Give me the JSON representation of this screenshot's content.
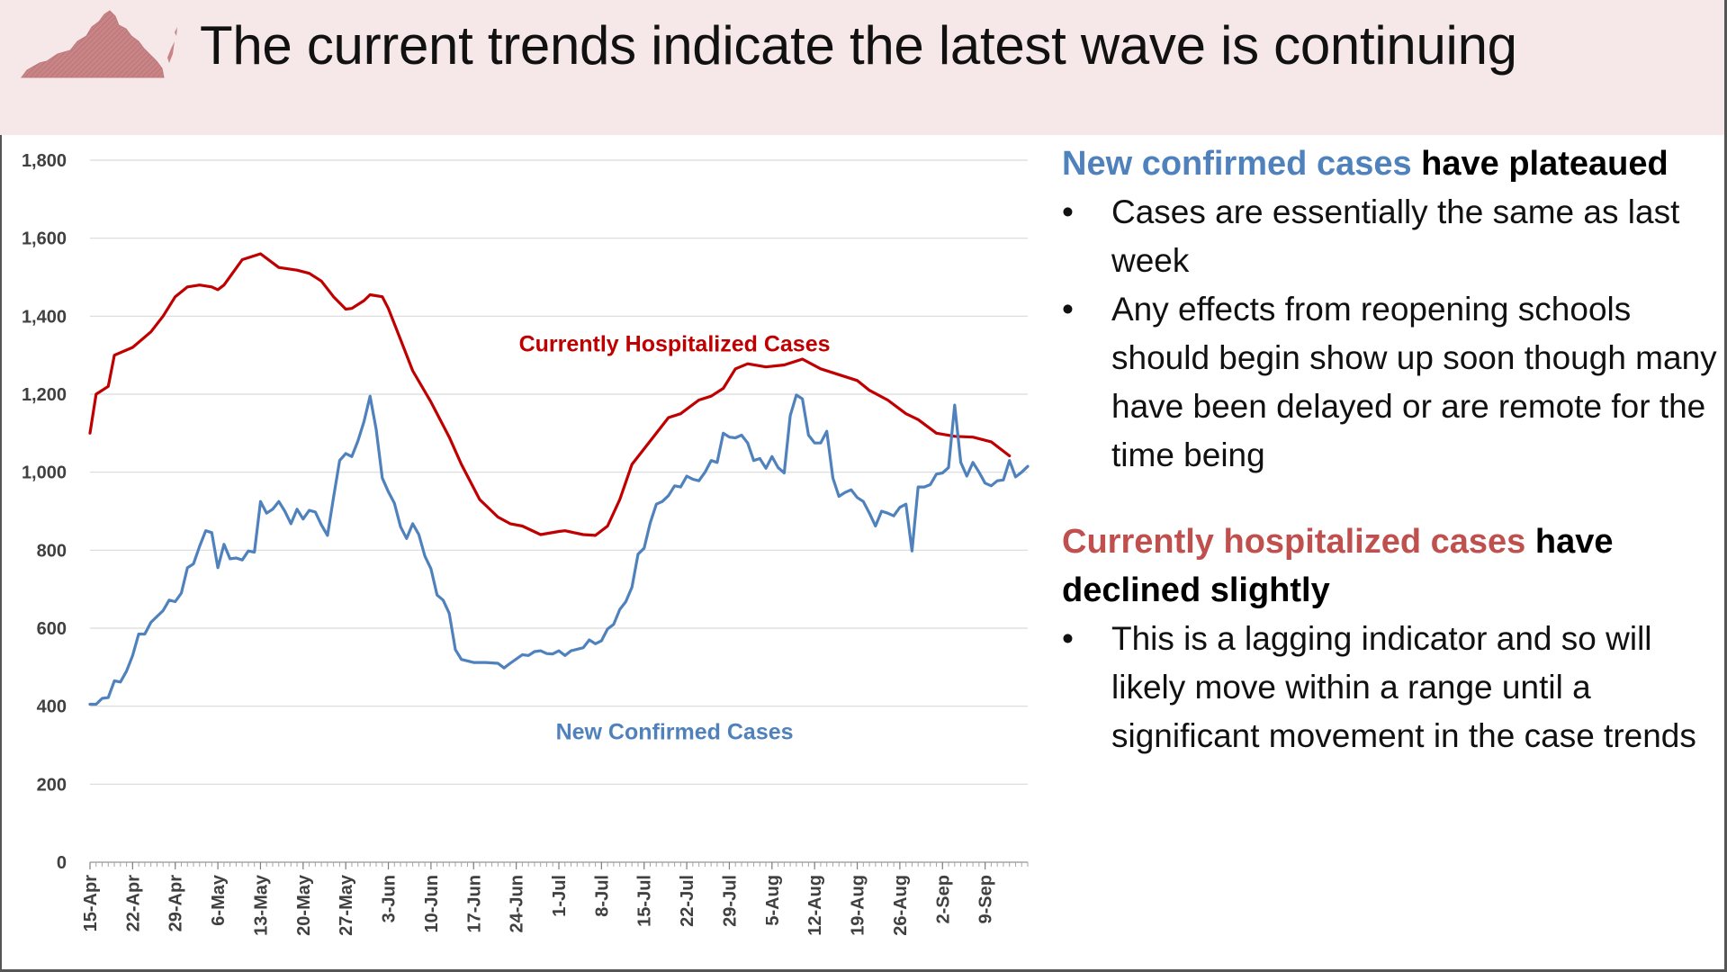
{
  "title": "The current trends indicate the latest wave is continuing",
  "icons": {
    "state": "virginia-map-icon"
  },
  "colors": {
    "header_bg": "#f6e8e9",
    "hospitalized": "#c00000",
    "confirmed": "#4f81bd",
    "confirmed_text": "#4f81bd",
    "hospitalized_text": "#c0504d"
  },
  "panel": {
    "section1": {
      "colored": "New confirmed cases",
      "rest": " have plateaued",
      "bullets": [
        "Cases are essentially the same as last week",
        "Any effects from reopening schools should begin show up soon though many have been delayed or are remote for the time being"
      ]
    },
    "section2": {
      "colored": "Currently hospitalized cases",
      "rest": " have declined slightly",
      "bullets": [
        "This is a lagging indicator and so will likely move within a range until a significant movement in the case trends"
      ]
    },
    "bullet_char": "•"
  },
  "chart_data": {
    "type": "line",
    "title": "",
    "xlabel": "",
    "ylabel": "",
    "ylim": [
      0,
      1800
    ],
    "yticks": [
      0,
      200,
      400,
      600,
      800,
      1000,
      1200,
      1400,
      1600,
      1800
    ],
    "yticklabels": [
      "0",
      "200",
      "400",
      "600",
      "800",
      "1,000",
      "1,200",
      "1,400",
      "1,600",
      "1,800"
    ],
    "x_start": "15-Apr",
    "x_end": "13-Sep",
    "xticklabels": [
      "15-Apr",
      "22-Apr",
      "29-Apr",
      "6-May",
      "13-May",
      "20-May",
      "27-May",
      "3-Jun",
      "10-Jun",
      "17-Jun",
      "24-Jun",
      "1-Jul",
      "8-Jul",
      "15-Jul",
      "22-Jul",
      "29-Jul",
      "5-Aug",
      "12-Aug",
      "19-Aug",
      "26-Aug",
      "2-Sep",
      "9-Sep"
    ],
    "grid": true,
    "series": [
      {
        "name": "Currently Hospitalized Cases",
        "color": "#c00000",
        "points": [
          [
            "15-Apr",
            1100
          ],
          [
            "16-Apr",
            1200
          ],
          [
            "18-Apr",
            1220
          ],
          [
            "19-Apr",
            1300
          ],
          [
            "22-Apr",
            1320
          ],
          [
            "25-Apr",
            1360
          ],
          [
            "27-Apr",
            1400
          ],
          [
            "29-Apr",
            1450
          ],
          [
            "1-May",
            1475
          ],
          [
            "3-May",
            1480
          ],
          [
            "5-May",
            1475
          ],
          [
            "6-May",
            1468
          ],
          [
            "7-May",
            1480
          ],
          [
            "10-May",
            1545
          ],
          [
            "13-May",
            1560
          ],
          [
            "16-May",
            1525
          ],
          [
            "19-May",
            1518
          ],
          [
            "21-May",
            1510
          ],
          [
            "23-May",
            1490
          ],
          [
            "25-May",
            1450
          ],
          [
            "27-May",
            1418
          ],
          [
            "28-May",
            1420
          ],
          [
            "30-May",
            1440
          ],
          [
            "31-May",
            1455
          ],
          [
            "2-Jun",
            1450
          ],
          [
            "3-Jun",
            1420
          ],
          [
            "5-Jun",
            1340
          ],
          [
            "7-Jun",
            1260
          ],
          [
            "10-Jun",
            1180
          ],
          [
            "13-Jun",
            1090
          ],
          [
            "15-Jun",
            1020
          ],
          [
            "18-Jun",
            930
          ],
          [
            "21-Jun",
            885
          ],
          [
            "23-Jun",
            868
          ],
          [
            "25-Jun",
            862
          ],
          [
            "28-Jun",
            840
          ],
          [
            "1-Jul",
            848
          ],
          [
            "2-Jul",
            850
          ],
          [
            "5-Jul",
            840
          ],
          [
            "7-Jul",
            838
          ],
          [
            "9-Jul",
            862
          ],
          [
            "11-Jul",
            930
          ],
          [
            "13-Jul",
            1020
          ],
          [
            "16-Jul",
            1080
          ],
          [
            "19-Jul",
            1140
          ],
          [
            "21-Jul",
            1150
          ],
          [
            "24-Jul",
            1185
          ],
          [
            "26-Jul",
            1195
          ],
          [
            "28-Jul",
            1215
          ],
          [
            "30-Jul",
            1265
          ],
          [
            "1-Aug",
            1278
          ],
          [
            "4-Aug",
            1270
          ],
          [
            "7-Aug",
            1275
          ],
          [
            "10-Aug",
            1290
          ],
          [
            "13-Aug",
            1265
          ],
          [
            "16-Aug",
            1250
          ],
          [
            "19-Aug",
            1235
          ],
          [
            "21-Aug",
            1210
          ],
          [
            "24-Aug",
            1185
          ],
          [
            "27-Aug",
            1150
          ],
          [
            "29-Aug",
            1135
          ],
          [
            "1-Sep",
            1100
          ],
          [
            "4-Sep",
            1092
          ],
          [
            "7-Sep",
            1090
          ],
          [
            "10-Sep",
            1078
          ],
          [
            "13-Sep",
            1042
          ]
        ]
      },
      {
        "name": "New Confirmed Cases",
        "color": "#4f81bd",
        "points": [
          [
            "15-Apr",
            405
          ],
          [
            "16-Apr",
            405
          ],
          [
            "17-Apr",
            420
          ],
          [
            "18-Apr",
            422
          ],
          [
            "19-Apr",
            465
          ],
          [
            "20-Apr",
            462
          ],
          [
            "21-Apr",
            490
          ],
          [
            "22-Apr",
            530
          ],
          [
            "23-Apr",
            585
          ],
          [
            "24-Apr",
            585
          ],
          [
            "25-Apr",
            615
          ],
          [
            "26-Apr",
            630
          ],
          [
            "27-Apr",
            645
          ],
          [
            "28-Apr",
            672
          ],
          [
            "29-Apr",
            668
          ],
          [
            "30-Apr",
            690
          ],
          [
            "1-May",
            755
          ],
          [
            "2-May",
            765
          ],
          [
            "3-May",
            810
          ],
          [
            "4-May",
            850
          ],
          [
            "5-May",
            845
          ],
          [
            "6-May",
            755
          ],
          [
            "7-May",
            815
          ],
          [
            "8-May",
            778
          ],
          [
            "9-May",
            780
          ],
          [
            "10-May",
            775
          ],
          [
            "11-May",
            798
          ],
          [
            "12-May",
            795
          ],
          [
            "13-May",
            925
          ],
          [
            "14-May",
            895
          ],
          [
            "15-May",
            905
          ],
          [
            "16-May",
            925
          ],
          [
            "17-May",
            900
          ],
          [
            "18-May",
            868
          ],
          [
            "19-May",
            905
          ],
          [
            "20-May",
            880
          ],
          [
            "21-May",
            902
          ],
          [
            "22-May",
            898
          ],
          [
            "23-May",
            865
          ],
          [
            "24-May",
            838
          ],
          [
            "25-May",
            935
          ],
          [
            "26-May",
            1030
          ],
          [
            "27-May",
            1048
          ],
          [
            "28-May",
            1040
          ],
          [
            "29-May",
            1080
          ],
          [
            "30-May",
            1130
          ],
          [
            "31-May",
            1195
          ],
          [
            "1-Jun",
            1110
          ],
          [
            "2-Jun",
            985
          ],
          [
            "3-Jun",
            950
          ],
          [
            "4-Jun",
            920
          ],
          [
            "5-Jun",
            860
          ],
          [
            "6-Jun",
            830
          ],
          [
            "7-Jun",
            868
          ],
          [
            "8-Jun",
            840
          ],
          [
            "9-Jun",
            785
          ],
          [
            "10-Jun",
            752
          ],
          [
            "11-Jun",
            685
          ],
          [
            "12-Jun",
            672
          ],
          [
            "13-Jun",
            638
          ],
          [
            "14-Jun",
            545
          ],
          [
            "15-Jun",
            520
          ],
          [
            "17-Jun",
            512
          ],
          [
            "19-Jun",
            512
          ],
          [
            "21-Jun",
            510
          ],
          [
            "22-Jun",
            498
          ],
          [
            "23-Jun",
            510
          ],
          [
            "25-Jun",
            532
          ],
          [
            "26-Jun",
            530
          ],
          [
            "27-Jun",
            540
          ],
          [
            "28-Jun",
            542
          ],
          [
            "29-Jun",
            535
          ],
          [
            "30-Jun",
            534
          ],
          [
            "1-Jul",
            542
          ],
          [
            "2-Jul",
            530
          ],
          [
            "3-Jul",
            542
          ],
          [
            "5-Jul",
            550
          ],
          [
            "6-Jul",
            570
          ],
          [
            "7-Jul",
            560
          ],
          [
            "8-Jul",
            568
          ],
          [
            "9-Jul",
            598
          ],
          [
            "10-Jul",
            610
          ],
          [
            "11-Jul",
            648
          ],
          [
            "12-Jul",
            668
          ],
          [
            "13-Jul",
            705
          ],
          [
            "14-Jul",
            790
          ],
          [
            "15-Jul",
            805
          ],
          [
            "16-Jul",
            870
          ],
          [
            "17-Jul",
            918
          ],
          [
            "18-Jul",
            925
          ],
          [
            "19-Jul",
            940
          ],
          [
            "20-Jul",
            965
          ],
          [
            "21-Jul",
            962
          ],
          [
            "22-Jul",
            990
          ],
          [
            "23-Jul",
            982
          ],
          [
            "24-Jul",
            978
          ],
          [
            "25-Jul",
            1000
          ],
          [
            "26-Jul",
            1030
          ],
          [
            "27-Jul",
            1025
          ],
          [
            "28-Jul",
            1100
          ],
          [
            "29-Jul",
            1090
          ],
          [
            "30-Jul",
            1088
          ],
          [
            "31-Jul",
            1095
          ],
          [
            "1-Aug",
            1075
          ],
          [
            "2-Aug",
            1030
          ],
          [
            "3-Aug",
            1035
          ],
          [
            "4-Aug",
            1010
          ],
          [
            "5-Aug",
            1040
          ],
          [
            "6-Aug",
            1012
          ],
          [
            "7-Aug",
            998
          ],
          [
            "8-Aug",
            1145
          ],
          [
            "9-Aug",
            1198
          ],
          [
            "10-Aug",
            1188
          ],
          [
            "11-Aug",
            1095
          ],
          [
            "12-Aug",
            1075
          ],
          [
            "13-Aug",
            1075
          ],
          [
            "14-Aug",
            1105
          ],
          [
            "15-Aug",
            985
          ],
          [
            "16-Aug",
            938
          ],
          [
            "17-Aug",
            948
          ],
          [
            "18-Aug",
            955
          ],
          [
            "19-Aug",
            935
          ],
          [
            "20-Aug",
            925
          ],
          [
            "21-Aug",
            895
          ],
          [
            "22-Aug",
            862
          ],
          [
            "23-Aug",
            900
          ],
          [
            "24-Aug",
            895
          ],
          [
            "25-Aug",
            888
          ],
          [
            "26-Aug",
            910
          ],
          [
            "27-Aug",
            918
          ],
          [
            "28-Aug",
            798
          ],
          [
            "29-Aug",
            962
          ],
          [
            "30-Aug",
            962
          ],
          [
            "31-Aug",
            968
          ],
          [
            "1-Sep",
            995
          ],
          [
            "2-Sep",
            998
          ],
          [
            "3-Sep",
            1012
          ],
          [
            "4-Sep",
            1172
          ],
          [
            "5-Sep",
            1025
          ],
          [
            "6-Sep",
            990
          ],
          [
            "7-Sep",
            1025
          ],
          [
            "8-Sep",
            1000
          ],
          [
            "9-Sep",
            972
          ],
          [
            "10-Sep",
            965
          ],
          [
            "11-Sep",
            978
          ],
          [
            "12-Sep",
            980
          ],
          [
            "13-Sep",
            1030
          ],
          [
            "14-Sep",
            988
          ],
          [
            "15-Sep",
            1000
          ],
          [
            "16-Sep",
            1015
          ]
        ]
      }
    ],
    "annotations": [
      {
        "text": "Currently Hospitalized Cases",
        "series": 0,
        "x": "20-Jul",
        "y": 1310
      },
      {
        "text": "New Confirmed Cases",
        "series": 1,
        "x": "20-Jul",
        "y": 315
      }
    ]
  }
}
